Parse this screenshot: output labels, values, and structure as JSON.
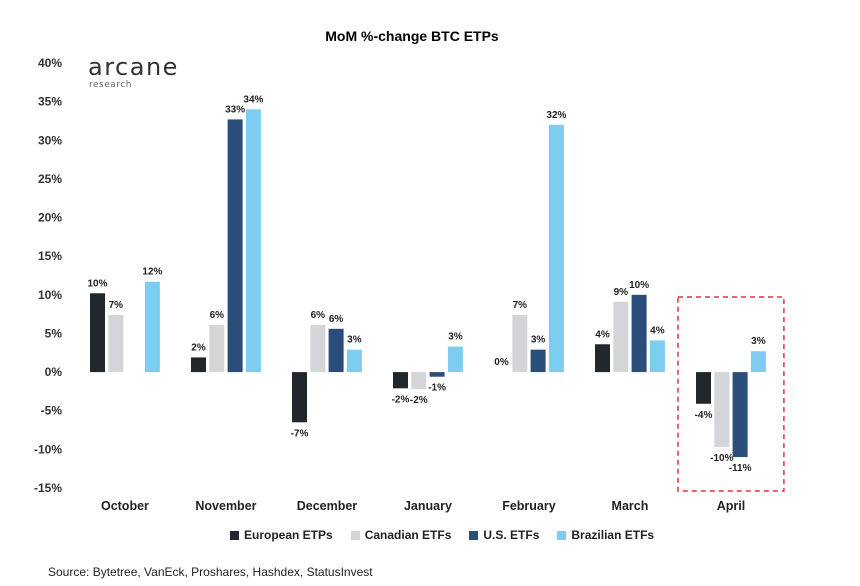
{
  "chart_data": {
    "type": "bar",
    "title": "MoM %-change BTC ETPs",
    "categories": [
      "October",
      "November",
      "December",
      "January",
      "February",
      "March",
      "April"
    ],
    "series": [
      {
        "name": "European ETPs",
        "color": "#22272e",
        "values": [
          10.2,
          1.9,
          -6.5,
          -2.1,
          0.0,
          3.6,
          -4.1
        ],
        "labels": [
          "10%",
          "2%",
          "-7%",
          "-2%",
          "0%",
          "4%",
          "-4%"
        ]
      },
      {
        "name": "Canadian ETFs",
        "color": "#d3d5d9",
        "values": [
          7.4,
          6.1,
          6.1,
          -2.2,
          7.4,
          9.1,
          -9.7
        ],
        "labels": [
          "7%",
          "6%",
          "6%",
          "-2%",
          "7%",
          "9%",
          "-10%"
        ]
      },
      {
        "name": "U.S. ETFs",
        "color": "#2a4d7a",
        "values": [
          null,
          32.7,
          5.6,
          -0.6,
          2.9,
          10.0,
          -11.0
        ],
        "labels": [
          "",
          "33%",
          "6%",
          "-1%",
          "3%",
          "10%",
          "-11%"
        ]
      },
      {
        "name": "Brazilian ETFs",
        "color": "#7ccdf0",
        "values": [
          11.7,
          34.0,
          2.9,
          3.3,
          32.0,
          4.1,
          2.7
        ],
        "labels": [
          "12%",
          "34%",
          "3%",
          "3%",
          "32%",
          "4%",
          "3%"
        ]
      }
    ],
    "ylim": [
      -15,
      40
    ],
    "yticks": [
      40,
      35,
      30,
      25,
      20,
      15,
      10,
      5,
      0,
      -5,
      -10,
      -15
    ],
    "ytick_labels": [
      "40%",
      "35%",
      "30%",
      "25%",
      "20%",
      "15%",
      "10%",
      "5%",
      "0%",
      "-5%",
      "-10%",
      "-15%"
    ],
    "highlight_category": "April",
    "highlight_color": "#d9363e",
    "grid": false,
    "legend_position": "bottom"
  },
  "logo": {
    "word": "arcane",
    "sub": "research"
  },
  "source": "Source: Bytetree, VanEck, Proshares, Hashdex, StatusInvest"
}
